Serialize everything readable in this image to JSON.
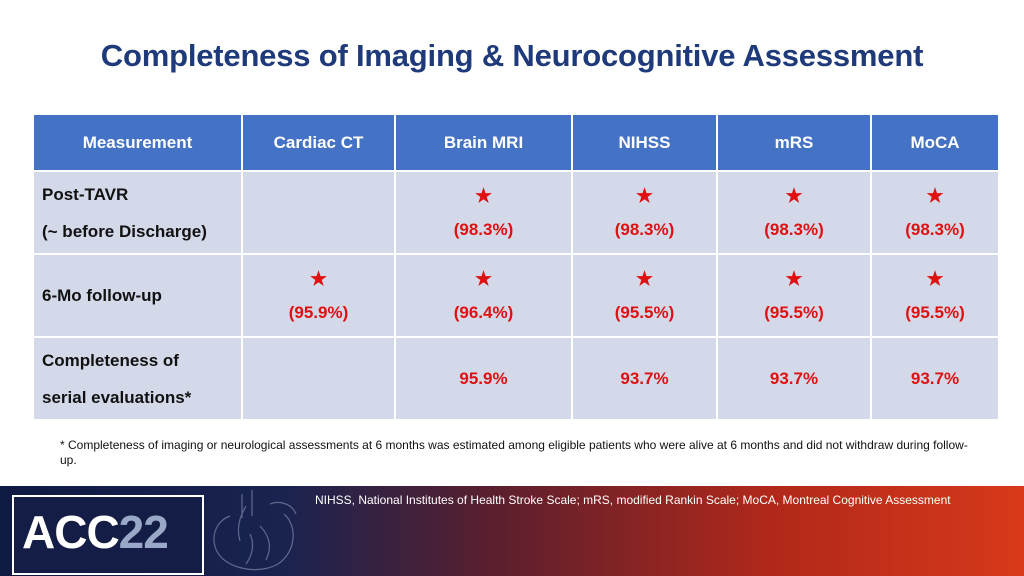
{
  "title": "Completeness of Imaging & Neurocognitive Assessment",
  "table": {
    "headers": [
      "Measurement",
      "Cardiac CT",
      "Brain MRI",
      "NIHSS",
      "mRS",
      "MoCA"
    ],
    "rows": [
      {
        "label_line1": "Post-TAVR",
        "label_line2": "(~ before Discharge)",
        "cells": [
          {
            "star": "",
            "value": ""
          },
          {
            "star": "★",
            "value": "(98.3%)"
          },
          {
            "star": "★",
            "value": "(98.3%)"
          },
          {
            "star": "★",
            "value": "(98.3%)"
          },
          {
            "star": "★",
            "value": "(98.3%)"
          }
        ]
      },
      {
        "label_line1": "6-Mo follow-up",
        "label_line2": "",
        "cells": [
          {
            "star": "★",
            "value": "(95.9%)"
          },
          {
            "star": "★",
            "value": "(96.4%)"
          },
          {
            "star": "★",
            "value": "(95.5%)"
          },
          {
            "star": "★",
            "value": "(95.5%)"
          },
          {
            "star": "★",
            "value": "(95.5%)"
          }
        ]
      },
      {
        "label_line1": "Completeness of",
        "label_line2": "serial evaluations*",
        "cells": [
          {
            "star": "",
            "value": ""
          },
          {
            "star": "",
            "value": "95.9%"
          },
          {
            "star": "",
            "value": "93.7%"
          },
          {
            "star": "",
            "value": "93.7%"
          },
          {
            "star": "",
            "value": "93.7%"
          }
        ]
      }
    ]
  },
  "footnote": "* Completeness of imaging or neurological assessments at 6 months was estimated among eligible patients who were alive at 6 months and did not withdraw during follow-up.",
  "abbreviations": "NIHSS, National Institutes of Health Stroke Scale; mRS, modified Rankin Scale; MoCA, Montreal Cognitive Assessment",
  "logo": {
    "prefix": "ACC",
    "suffix": "22"
  },
  "colors": {
    "title": "#1f3a7a",
    "header_bg": "#4472c4",
    "cell_bg": "#d4d9ea",
    "accent_red": "#e01010"
  }
}
